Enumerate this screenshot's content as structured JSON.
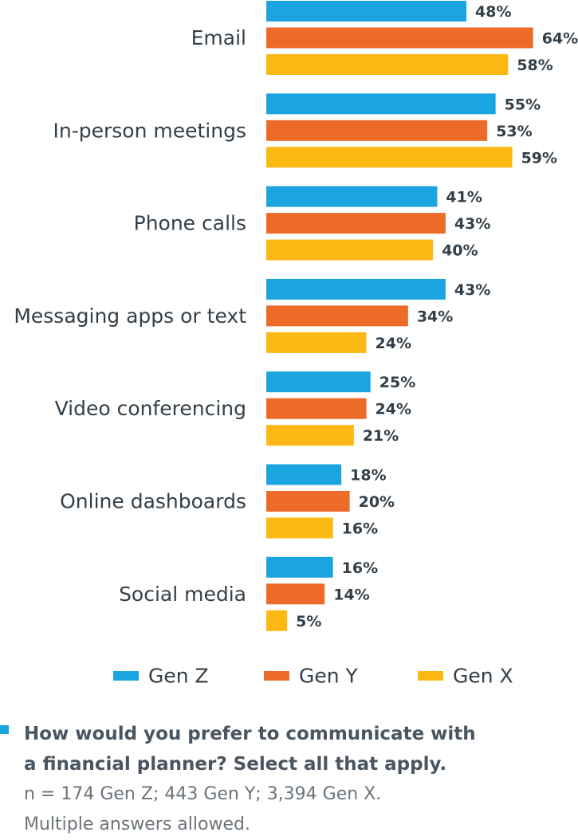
{
  "chart_data": {
    "type": "bar",
    "orientation": "horizontal",
    "categories": [
      "Email",
      "In-person meetings",
      "Phone calls",
      "Messaging apps or text",
      "Video conferencing",
      "Online dashboards",
      "Social media"
    ],
    "series": [
      {
        "name": "Gen Z",
        "color": "#1ba5e0",
        "values": [
          48,
          55,
          41,
          43,
          25,
          18,
          16
        ]
      },
      {
        "name": "Gen Y",
        "color": "#ec6b28",
        "values": [
          64,
          53,
          43,
          34,
          24,
          20,
          14
        ]
      },
      {
        "name": "Gen X",
        "color": "#fdb913",
        "values": [
          58,
          59,
          40,
          24,
          21,
          16,
          5
        ]
      }
    ],
    "value_suffix": "%",
    "xlim": [
      0,
      100
    ],
    "grid": false,
    "legend_placement": "bottom"
  },
  "footnote": {
    "marker_color": "#1ba5e0",
    "question_line1": "How would you prefer to communicate with",
    "question_line2": "a financial planner? Select all that apply.",
    "note_line1": "n = 174 Gen Z; 443 Gen Y; 3,394 Gen X.",
    "note_line2": "Multiple answers allowed."
  }
}
